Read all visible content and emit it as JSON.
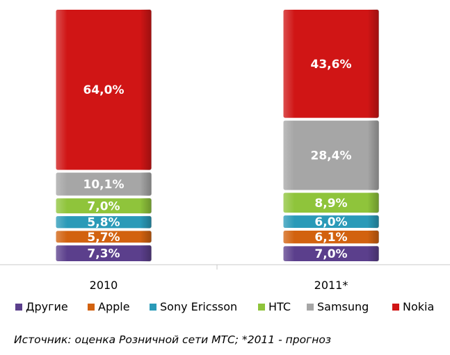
{
  "chart_data": {
    "type": "bar",
    "stacked": true,
    "percent_stacked": true,
    "categories": [
      "2010",
      "2011*"
    ],
    "series": [
      {
        "name": "Другие",
        "color": "#5b3f8c",
        "values": [
          7.3,
          7.0
        ],
        "labels": [
          "7,3%",
          "7,0%"
        ]
      },
      {
        "name": "Apple",
        "color": "#d2620f",
        "values": [
          5.7,
          6.1
        ],
        "labels": [
          "5,7%",
          "6,1%"
        ]
      },
      {
        "name": "Sony Ericsson",
        "color": "#2a9ab8",
        "values": [
          5.8,
          6.0
        ],
        "labels": [
          "5,8%",
          "6,0%"
        ]
      },
      {
        "name": "HTC",
        "color": "#8fc43b",
        "values": [
          7.0,
          8.9
        ],
        "labels": [
          "7,0%",
          "8,9%"
        ]
      },
      {
        "name": "Samsung",
        "color": "#a6a6a6",
        "values": [
          10.1,
          28.4
        ],
        "labels": [
          "10,1%",
          "28,4%"
        ]
      },
      {
        "name": "Nokia",
        "color": "#d01515",
        "values": [
          64.0,
          43.6
        ],
        "labels": [
          "64,0%",
          "43,6%"
        ]
      }
    ],
    "ylim": [
      0,
      100
    ],
    "grid": false,
    "legend_position": "bottom"
  },
  "source_note": "Источник: оценка Розничной сети МТС;  *2011 - прогноз"
}
